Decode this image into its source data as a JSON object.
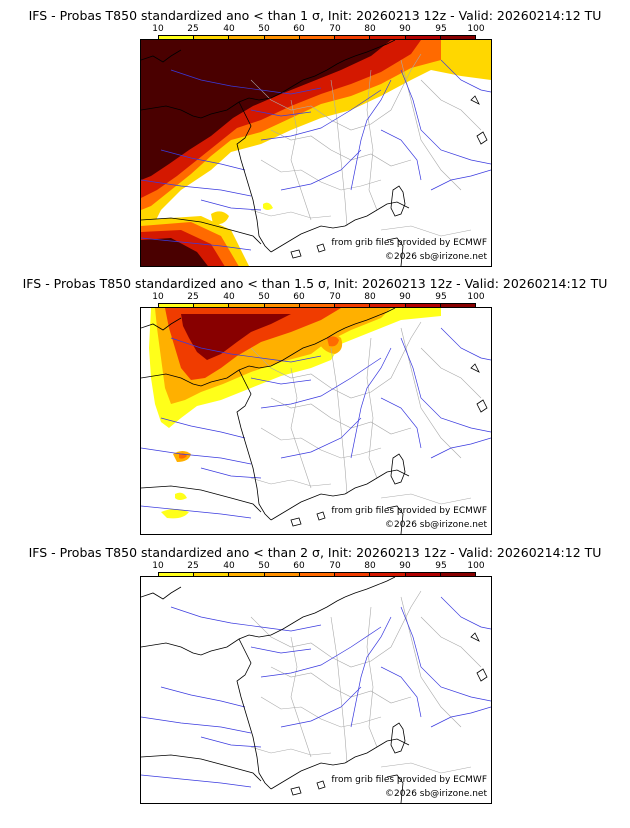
{
  "colorbar": {
    "labels": [
      "10",
      "25",
      "40",
      "50",
      "60",
      "70",
      "80",
      "90",
      "95",
      "100"
    ],
    "colors": [
      "#ffff1a",
      "#ffd700",
      "#ffb000",
      "#ff9000",
      "#ff6a00",
      "#f03c00",
      "#d41800",
      "#b00000",
      "#880000",
      "#4a0000"
    ]
  },
  "panels": [
    {
      "title": "IFS - Probas T850  standardized ano < than 1 σ, Init: 20260213 12z - Valid: 20260214:12 TU",
      "source_credit": "from grib files provided by ECMWF",
      "copyright": "©2026 sb@irizone.net"
    },
    {
      "title": "IFS - Probas T850  standardized ano < than 1.5 σ, Init: 20260213 12z - Valid: 20260214:12 TU",
      "source_credit": "from grib files provided by ECMWF",
      "copyright": "©2026 sb@irizone.net"
    },
    {
      "title": "IFS - Probas T850  standardized ano < than 2 σ, Init: 20260213 12z - Valid: 20260214:12 TU",
      "source_credit": "from grib files provided by ECMWF",
      "copyright": "©2026 sb@irizone.net"
    }
  ]
}
